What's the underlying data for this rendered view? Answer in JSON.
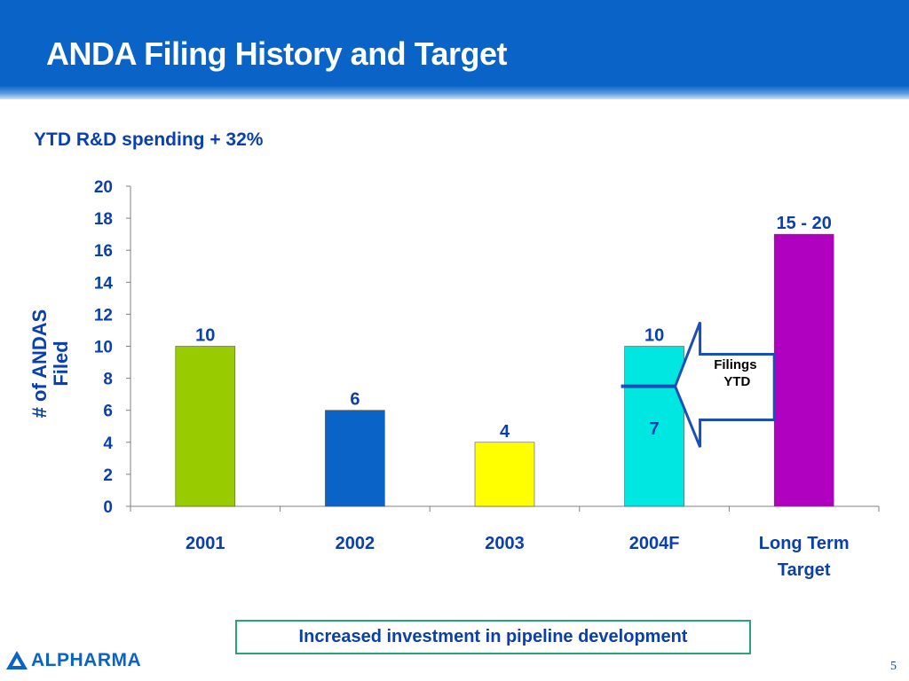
{
  "slide": {
    "title": "ANDA Filing History and Target",
    "subtitle": "YTD R&D spending + 32%",
    "callout": "Increased investment in pipeline development",
    "logo_text": "ALPHARMA",
    "page_number": "5"
  },
  "chart_data": {
    "type": "bar",
    "categories": [
      "2001",
      "2002",
      "2003",
      "2004F",
      "Long Term Target"
    ],
    "values": [
      10,
      6,
      4,
      10,
      17
    ],
    "data_labels": [
      "10",
      "6",
      "4",
      "10",
      "15 - 20"
    ],
    "bar_colors": [
      "#99cc00",
      "#0a63c6",
      "#ffff00",
      "#00e6e0",
      "#b000c0"
    ],
    "ylabel": "# of ANDAS Filed",
    "ylim": [
      0,
      20
    ],
    "yticks": [
      0,
      2,
      4,
      6,
      8,
      10,
      12,
      14,
      16,
      18,
      20
    ],
    "grid": false,
    "annotation": {
      "category": "2004F",
      "value": 7.5,
      "value_label": "7",
      "text": "Filings YTD",
      "color": "#1a4fb8"
    }
  }
}
